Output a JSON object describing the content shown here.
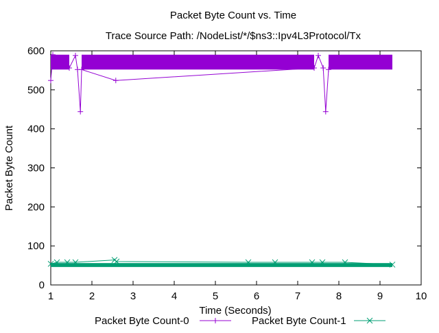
{
  "chart_data": {
    "type": "line",
    "title": "Packet Byte Count vs. Time",
    "subtitle": "Trace Source Path: /NodeList/*/$ns3::Ipv4L3Protocol/Tx",
    "xlabel": "Time (Seconds)",
    "ylabel": "Packet Byte Count",
    "xlim": [
      1,
      10
    ],
    "ylim": [
      0,
      600
    ],
    "x_ticks": [
      1,
      2,
      3,
      4,
      5,
      6,
      7,
      8,
      9,
      10
    ],
    "y_ticks": [
      0,
      100,
      200,
      300,
      400,
      500,
      600
    ],
    "grid": false,
    "legend_position": "bottom",
    "series": [
      {
        "name": "Packet Byte Count-0",
        "color": "#9400d3",
        "marker": "plus",
        "bands": [
          {
            "x_start": 1.0,
            "x_end": 1.45,
            "y_low": 552,
            "y_high": 590
          },
          {
            "x_start": 1.75,
            "x_end": 7.4,
            "y_low": 552,
            "y_high": 590
          },
          {
            "x_start": 7.75,
            "x_end": 9.3,
            "y_low": 552,
            "y_high": 590
          }
        ],
        "points": [
          {
            "x": 1.0,
            "y": 524
          },
          {
            "x": 1.05,
            "y": 590
          },
          {
            "x": 1.45,
            "y": 556
          },
          {
            "x": 1.6,
            "y": 588
          },
          {
            "x": 1.65,
            "y": 552
          },
          {
            "x": 1.72,
            "y": 444
          },
          {
            "x": 1.75,
            "y": 552
          },
          {
            "x": 2.58,
            "y": 524
          },
          {
            "x": 7.4,
            "y": 556
          },
          {
            "x": 7.5,
            "y": 588
          },
          {
            "x": 7.62,
            "y": 556
          },
          {
            "x": 7.68,
            "y": 444
          },
          {
            "x": 7.75,
            "y": 552
          }
        ]
      },
      {
        "name": "Packet Byte Count-1",
        "color": "#009e73",
        "marker": "cross",
        "bands": [
          {
            "x_start": 1.0,
            "x_end": 9.3,
            "y_low": 46,
            "y_high": 56
          }
        ],
        "points": [
          {
            "x": 1.0,
            "y": 54
          },
          {
            "x": 1.15,
            "y": 58
          },
          {
            "x": 1.4,
            "y": 58
          },
          {
            "x": 1.6,
            "y": 58
          },
          {
            "x": 2.55,
            "y": 64
          },
          {
            "x": 2.6,
            "y": 60
          },
          {
            "x": 5.8,
            "y": 58
          },
          {
            "x": 6.45,
            "y": 58
          },
          {
            "x": 7.35,
            "y": 58
          },
          {
            "x": 7.6,
            "y": 58
          },
          {
            "x": 8.15,
            "y": 58
          },
          {
            "x": 9.3,
            "y": 52
          }
        ]
      }
    ]
  }
}
